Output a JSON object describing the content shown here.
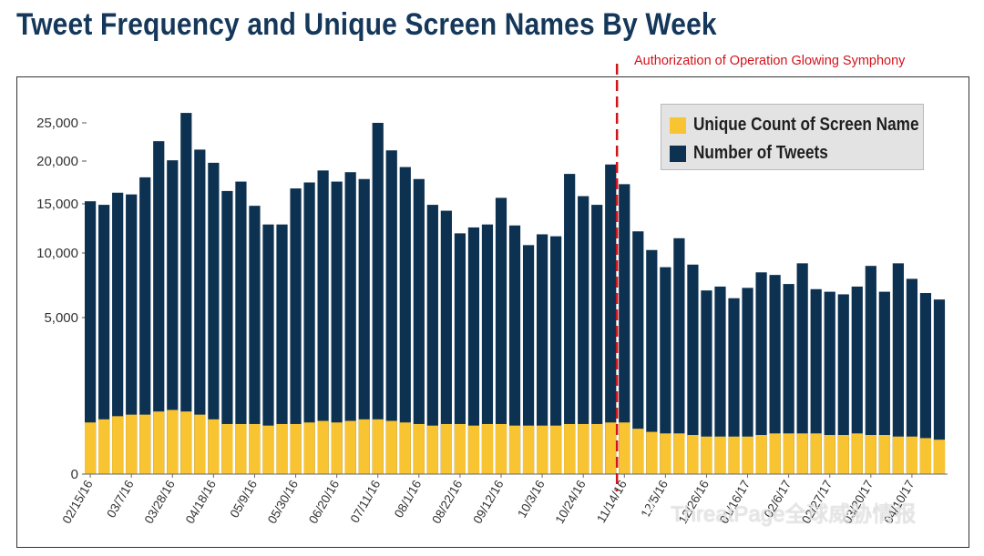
{
  "title": "Tweet Frequency and Unique Screen Names By Week",
  "annotation": "Authorization of Operation Glowing Symphony",
  "watermark": "ThreatPage全球威胁情报",
  "colors": {
    "tweets": "#0d3150",
    "unique": "#f8c432",
    "annotation": "#d0141c",
    "title": "#14375a"
  },
  "legend": {
    "unique_label": "Unique Count of Screen Name",
    "tweets_label": "Number of Tweets"
  },
  "chart_data": {
    "type": "bar",
    "stacked": true,
    "y_scale": "nonlinear (square-root-like)",
    "y_ticks": [
      {
        "value": 0,
        "label": "0"
      },
      {
        "value": 5000,
        "label": "5,000"
      },
      {
        "value": 10000,
        "label": "10,000"
      },
      {
        "value": 15000,
        "label": "15,000"
      },
      {
        "value": 20000,
        "label": "20,000"
      },
      {
        "value": 25000,
        "label": "25,000"
      }
    ],
    "x_tick_labels": [
      {
        "index": 0,
        "label": "02/15/16"
      },
      {
        "index": 3,
        "label": "03/7/16"
      },
      {
        "index": 6,
        "label": "03/28/16"
      },
      {
        "index": 9,
        "label": "04/18/16"
      },
      {
        "index": 12,
        "label": "05/9/16"
      },
      {
        "index": 15,
        "label": "05/30/16"
      },
      {
        "index": 18,
        "label": "06/20/16"
      },
      {
        "index": 21,
        "label": "07/11/16"
      },
      {
        "index": 24,
        "label": "08/1/16"
      },
      {
        "index": 27,
        "label": "08/22/16"
      },
      {
        "index": 30,
        "label": "09/12/16"
      },
      {
        "index": 33,
        "label": "10/3/16"
      },
      {
        "index": 36,
        "label": "10/24/16"
      },
      {
        "index": 39,
        "label": "11/14/16"
      },
      {
        "index": 42,
        "label": "12/5/16"
      },
      {
        "index": 45,
        "label": "12/26/16"
      },
      {
        "index": 48,
        "label": "01/16/17"
      },
      {
        "index": 51,
        "label": "02/6/17"
      },
      {
        "index": 54,
        "label": "02/27/17"
      },
      {
        "index": 57,
        "label": "03/20/17"
      },
      {
        "index": 60,
        "label": "04/10/17"
      }
    ],
    "annotation_week_index": 39,
    "series": [
      {
        "name": "Number of Tweets",
        "values": [
          15300,
          14900,
          16300,
          16100,
          18100,
          22600,
          20100,
          26300,
          21500,
          19800,
          16500,
          17600,
          14800,
          12900,
          12900,
          16800,
          17500,
          18900,
          17600,
          18700,
          17900,
          25000,
          21400,
          19300,
          17900,
          14900,
          14300,
          12000,
          12600,
          12900,
          15700,
          12800,
          10800,
          11900,
          11700,
          18500,
          15900,
          14900,
          19600,
          17300,
          12200,
          10300,
          8900,
          11500,
          9100,
          7100,
          7400,
          6500,
          7300,
          8500,
          8300,
          7600,
          9200,
          7200,
          7000,
          6800,
          7400,
          9000,
          7000,
          9200,
          8000,
          6900,
          6400
        ]
      },
      {
        "name": "Unique Count of Screen Name",
        "values": [
          1650,
          1750,
          1850,
          1900,
          1900,
          2000,
          2050,
          2000,
          1900,
          1750,
          1600,
          1600,
          1600,
          1550,
          1600,
          1600,
          1650,
          1700,
          1650,
          1700,
          1750,
          1750,
          1700,
          1650,
          1600,
          1550,
          1600,
          1600,
          1550,
          1600,
          1600,
          1550,
          1550,
          1550,
          1550,
          1600,
          1600,
          1600,
          1650,
          1650,
          1450,
          1350,
          1300,
          1300,
          1250,
          1200,
          1200,
          1200,
          1200,
          1250,
          1300,
          1300,
          1300,
          1300,
          1250,
          1250,
          1300,
          1250,
          1250,
          1200,
          1200,
          1150,
          1100
        ]
      }
    ]
  }
}
